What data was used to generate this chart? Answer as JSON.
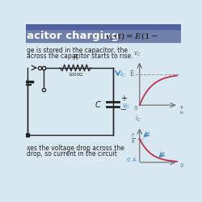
{
  "bg_top_color": "#7080aa",
  "bg_main_color": "#d8e8f0",
  "circuit_color": "#222222",
  "curve_color": "#c03050",
  "arrow_color": "#4488bb",
  "text_color": "#222222",
  "gray_color": "#666666",
  "title_text": "acitor charging",
  "formula_text": "$v_C(t) = E(1-$",
  "line1": "ge is stored in the capacitor, the",
  "line2": "across the capacitor starts to rise.",
  "line3": "xes the voltage drop across the",
  "line4": "drop, so current in the circuit",
  "R_label": "R",
  "R_value": "1000Ω",
  "C_label": "C",
  "ic_label": "$i_C$",
  "vc_label": "$v_C$",
  "E_label": "E",
  "ER_label": "$\\frac{E}{R}$",
  "zeroA_label": "0 A",
  "zero_label": "0",
  "tr_label": "Tr\nin",
  "vC_axis": "$v_C$",
  "iC_axis": "$i_C$"
}
